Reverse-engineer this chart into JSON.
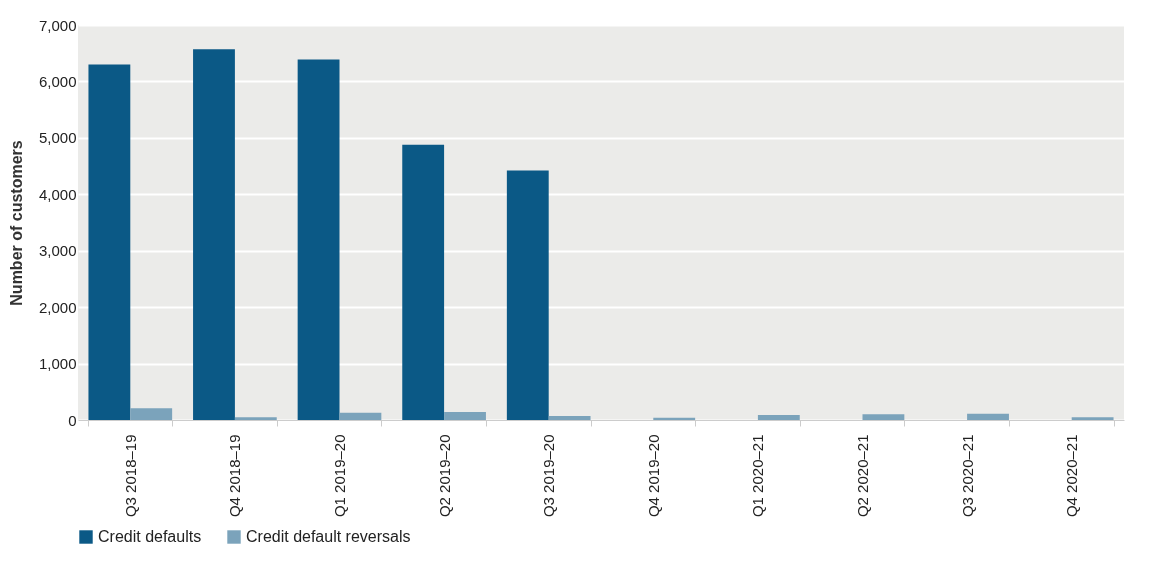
{
  "chart_data": {
    "type": "bar",
    "ylabel": "Number of customers",
    "categories": [
      "Q3 2018–19",
      "Q4 2018–19",
      "Q1 2019–20",
      "Q2 2019–20",
      "Q3 2019–20",
      "Q4 2019–20",
      "Q1 2020–21",
      "Q2 2020–21",
      "Q3 2020–21",
      "Q4 2020–21"
    ],
    "series": [
      {
        "name": "Credit defaults",
        "color": "#0b5986",
        "values": [
          6300,
          6570,
          6390,
          4880,
          4420,
          null,
          null,
          null,
          null,
          null
        ]
      },
      {
        "name": "Credit default reversals",
        "color": "#7ba3bb",
        "values": [
          210,
          50,
          130,
          140,
          70,
          40,
          90,
          100,
          110,
          50
        ]
      }
    ],
    "ylim": [
      0,
      7000
    ],
    "yticks": [
      0,
      {
        "value": 1000,
        "label": "1,000"
      },
      {
        "value": 2000,
        "label": "2,000"
      },
      {
        "value": 3000,
        "label": "3,000"
      },
      {
        "value": 4000,
        "label": "4,000"
      },
      {
        "value": 5000,
        "label": "5,000"
      },
      {
        "value": 6000,
        "label": "6,000"
      },
      {
        "value": 7000,
        "label": "7,000"
      }
    ],
    "grid": "y",
    "legend": "bottom"
  }
}
